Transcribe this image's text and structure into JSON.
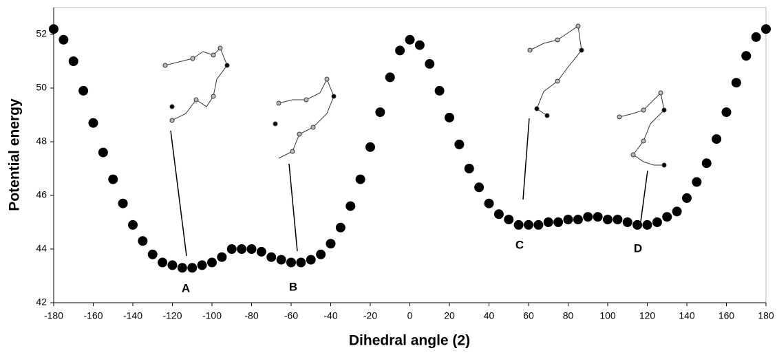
{
  "chart_data": {
    "type": "scatter",
    "x_label": "Dihedral angle (2)",
    "y_label": "Potential energy",
    "color": "#000000",
    "xlim": [
      -180,
      180
    ],
    "ylim": [
      42,
      53
    ],
    "xticks": [
      -180,
      -160,
      -140,
      -120,
      -100,
      -80,
      -60,
      -40,
      -20,
      0,
      20,
      40,
      60,
      80,
      100,
      120,
      140,
      160,
      180
    ],
    "yticks": [
      42,
      44,
      46,
      48,
      50,
      52
    ],
    "x": [
      -180,
      -175,
      -170,
      -165,
      -160,
      -155,
      -150,
      -145,
      -140,
      -135,
      -130,
      -125,
      -120,
      -115,
      -110,
      -105,
      -100,
      -95,
      -90,
      -85,
      -80,
      -75,
      -70,
      -65,
      -60,
      -55,
      -50,
      -45,
      -40,
      -35,
      -30,
      -25,
      -20,
      -15,
      -10,
      -5,
      0,
      5,
      10,
      15,
      20,
      25,
      30,
      35,
      40,
      45,
      50,
      55,
      60,
      65,
      70,
      75,
      80,
      85,
      90,
      95,
      100,
      105,
      110,
      115,
      120,
      125,
      130,
      135,
      140,
      145,
      150,
      155,
      160,
      165,
      170,
      175,
      180
    ],
    "values": [
      52.2,
      51.8,
      51.0,
      49.9,
      48.7,
      47.6,
      46.6,
      45.7,
      44.9,
      44.3,
      43.8,
      43.5,
      43.4,
      43.3,
      43.3,
      43.4,
      43.5,
      43.7,
      44.0,
      44.0,
      44.0,
      43.9,
      43.7,
      43.6,
      43.5,
      43.5,
      43.6,
      43.8,
      44.2,
      44.8,
      45.6,
      46.6,
      47.8,
      49.1,
      50.4,
      51.4,
      51.8,
      51.6,
      50.9,
      49.9,
      48.9,
      47.9,
      47.0,
      46.3,
      45.7,
      45.3,
      45.1,
      44.9,
      44.9,
      44.9,
      45.0,
      45.0,
      45.1,
      45.1,
      45.2,
      45.2,
      45.1,
      45.1,
      45.0,
      44.9,
      44.9,
      45.0,
      45.2,
      45.4,
      45.9,
      46.5,
      47.2,
      48.1,
      49.1,
      50.2,
      51.2,
      51.9,
      52.2
    ],
    "annotations": [
      "A",
      "B",
      "C",
      "D"
    ]
  }
}
